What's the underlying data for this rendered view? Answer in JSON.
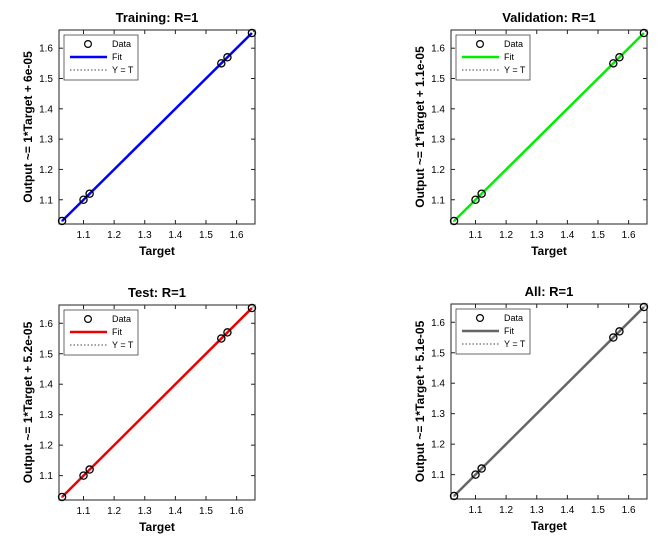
{
  "chart_data": [
    {
      "type": "scatter",
      "title": "Training: R=1",
      "xlabel": "Target",
      "ylabel": "Output ~= 1*Target + 6e-05",
      "xlim": [
        1.02,
        1.66
      ],
      "ylim": [
        1.02,
        1.66
      ],
      "xticks": [
        "1.1",
        "1.2",
        "1.3",
        "1.4",
        "1.5",
        "1.6"
      ],
      "yticks": [
        "1.1",
        "1.2",
        "1.3",
        "1.4",
        "1.5",
        "1.6"
      ],
      "fit_color": "#0000ff",
      "legend": [
        "Data",
        "Fit",
        "Y = T"
      ],
      "legend_position": "top-left",
      "grid": false,
      "points": [
        {
          "x": 1.03,
          "y": 1.03
        },
        {
          "x": 1.1,
          "y": 1.1
        },
        {
          "x": 1.12,
          "y": 1.12
        },
        {
          "x": 1.55,
          "y": 1.55
        },
        {
          "x": 1.57,
          "y": 1.57
        },
        {
          "x": 1.65,
          "y": 1.65
        }
      ]
    },
    {
      "type": "scatter",
      "title": "Validation: R=1",
      "xlabel": "Target",
      "ylabel": "Output ~= 1*Target + 1.1e-05",
      "xlim": [
        1.02,
        1.66
      ],
      "ylim": [
        1.02,
        1.66
      ],
      "xticks": [
        "1.1",
        "1.2",
        "1.3",
        "1.4",
        "1.5",
        "1.6"
      ],
      "yticks": [
        "1.1",
        "1.2",
        "1.3",
        "1.4",
        "1.5",
        "1.6"
      ],
      "fit_color": "#00ee00",
      "legend": [
        "Data",
        "Fit",
        "Y = T"
      ],
      "legend_position": "top-left",
      "grid": false,
      "points": [
        {
          "x": 1.03,
          "y": 1.03
        },
        {
          "x": 1.1,
          "y": 1.1
        },
        {
          "x": 1.12,
          "y": 1.12
        },
        {
          "x": 1.55,
          "y": 1.55
        },
        {
          "x": 1.57,
          "y": 1.57
        },
        {
          "x": 1.65,
          "y": 1.65
        }
      ]
    },
    {
      "type": "scatter",
      "title": "Test: R=1",
      "xlabel": "Target",
      "ylabel": "Output ~= 1*Target + 5.2e-05",
      "xlim": [
        1.02,
        1.66
      ],
      "ylim": [
        1.02,
        1.66
      ],
      "xticks": [
        "1.1",
        "1.2",
        "1.3",
        "1.4",
        "1.5",
        "1.6"
      ],
      "yticks": [
        "1.1",
        "1.2",
        "1.3",
        "1.4",
        "1.5",
        "1.6"
      ],
      "fit_color": "#ee0000",
      "legend": [
        "Data",
        "Fit",
        "Y = T"
      ],
      "legend_position": "top-left",
      "grid": false,
      "points": [
        {
          "x": 1.03,
          "y": 1.03
        },
        {
          "x": 1.1,
          "y": 1.1
        },
        {
          "x": 1.12,
          "y": 1.12
        },
        {
          "x": 1.55,
          "y": 1.55
        },
        {
          "x": 1.57,
          "y": 1.57
        },
        {
          "x": 1.65,
          "y": 1.65
        }
      ]
    },
    {
      "type": "scatter",
      "title": "All: R=1",
      "xlabel": "Target",
      "ylabel": "Output ~= 1*Target + 5.1e-05",
      "xlim": [
        1.02,
        1.66
      ],
      "ylim": [
        1.02,
        1.66
      ],
      "xticks": [
        "1.1",
        "1.2",
        "1.3",
        "1.4",
        "1.5",
        "1.6"
      ],
      "yticks": [
        "1.1",
        "1.2",
        "1.3",
        "1.4",
        "1.5",
        "1.6"
      ],
      "fit_color": "#666666",
      "legend": [
        "Data",
        "Fit",
        "Y = T"
      ],
      "legend_position": "top-left",
      "grid": false,
      "points": [
        {
          "x": 1.03,
          "y": 1.03
        },
        {
          "x": 1.1,
          "y": 1.1
        },
        {
          "x": 1.12,
          "y": 1.12
        },
        {
          "x": 1.55,
          "y": 1.55
        },
        {
          "x": 1.57,
          "y": 1.57
        },
        {
          "x": 1.65,
          "y": 1.65
        }
      ]
    }
  ]
}
